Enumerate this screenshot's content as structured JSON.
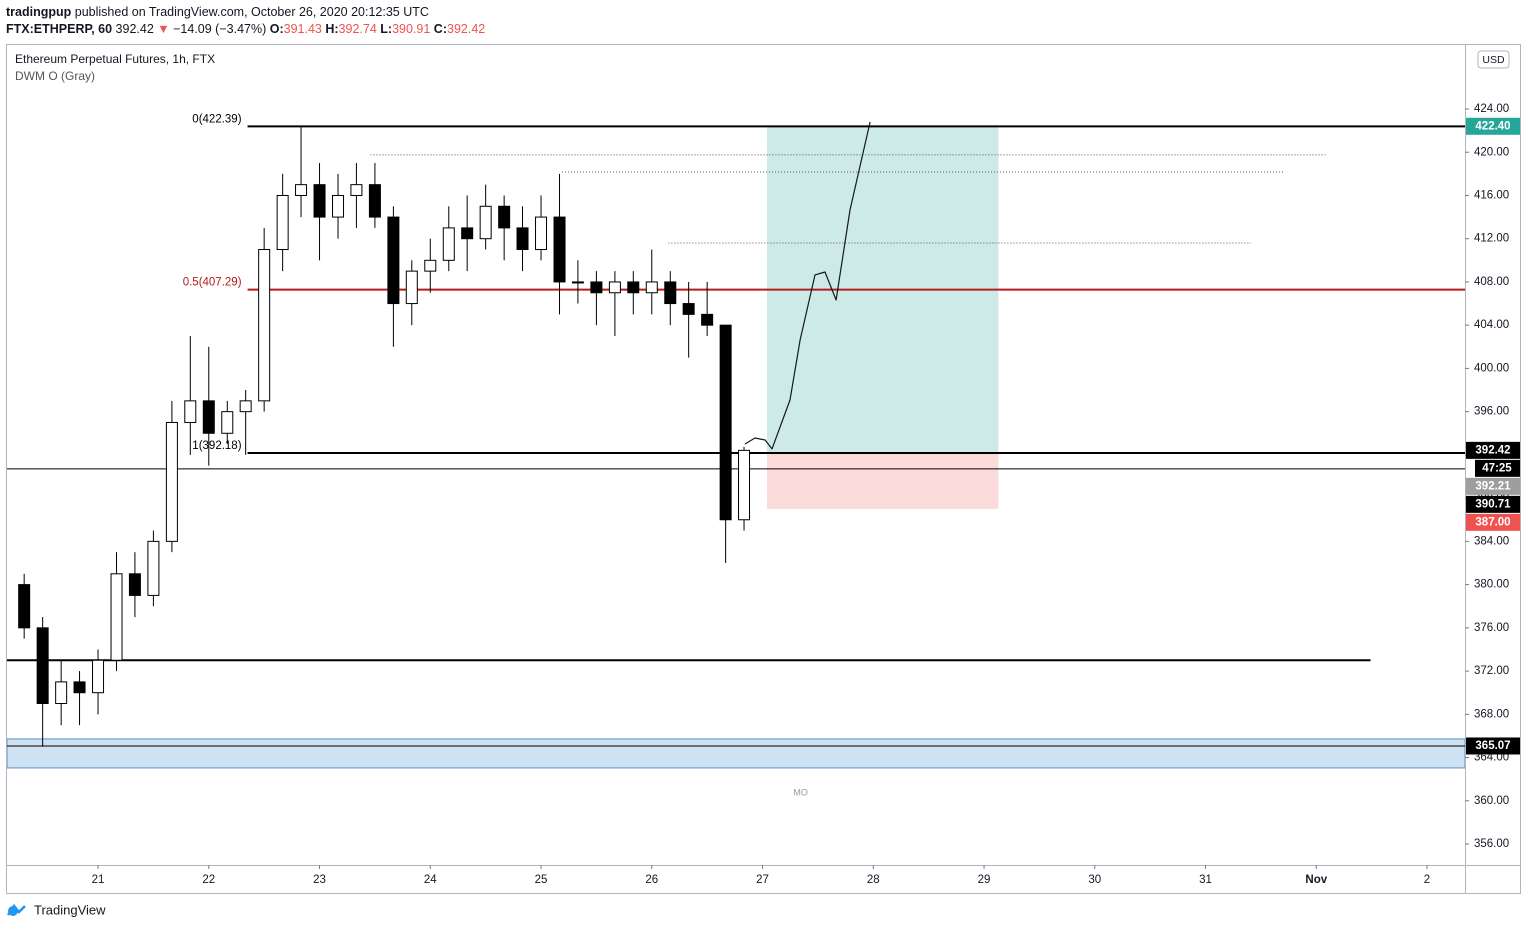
{
  "header": {
    "author": "tradingpup",
    "published": "published on TradingView.com, October 26, 2020 20:12:35 UTC",
    "symbol": "FTX:ETHPERP, 60",
    "last": 392.42,
    "change": "−14.09 (−3.47%)",
    "ohlc": [
      {
        "label": "O:",
        "value": 391.43
      },
      {
        "label": "H:",
        "value": 392.74
      },
      {
        "label": "L:",
        "value": 390.91
      },
      {
        "label": "C:",
        "value": 392.42
      }
    ]
  },
  "chart_data": {
    "type": "candlestick",
    "title": "Ethereum Perpetual Futures, 1h, FTX",
    "subtitle": "DWM O (Gray)",
    "currency": "USD",
    "watermark": "MO",
    "brand": "TradingView",
    "x": [
      20.333,
      20.5,
      20.667,
      20.833,
      21.0,
      21.167,
      21.333,
      21.5,
      21.667,
      21.833,
      22.0,
      22.167,
      22.333,
      22.5,
      22.667,
      22.833,
      23.0,
      23.167,
      23.333,
      23.5,
      23.667,
      23.833,
      24.0,
      24.167,
      24.333,
      24.5,
      24.667,
      24.833,
      25.0,
      25.167,
      25.333,
      25.5,
      25.667,
      25.833,
      26.0,
      26.167,
      26.333,
      26.5,
      26.667,
      26.833
    ],
    "open": [
      380,
      376,
      369,
      371,
      370,
      373,
      381,
      379,
      384,
      395,
      397,
      394,
      396,
      397,
      411,
      416,
      417,
      414,
      416,
      417,
      414,
      406,
      409,
      410,
      413,
      412,
      415,
      413,
      411,
      414,
      408,
      408,
      407,
      408,
      407,
      408,
      406,
      405,
      404,
      386
    ],
    "high": [
      381,
      377,
      373,
      372,
      374,
      383,
      383,
      385,
      397,
      403,
      402,
      397,
      398,
      413,
      418,
      422.4,
      419,
      418,
      419,
      419,
      415,
      410,
      412,
      415,
      416,
      417,
      416,
      415,
      416,
      418,
      410,
      409,
      409,
      409,
      411,
      409,
      408,
      408,
      404,
      392.74
    ],
    "low": [
      375,
      365,
      367,
      367,
      368,
      372,
      377,
      378,
      383,
      392,
      391,
      393,
      392,
      396,
      409,
      414,
      410,
      412,
      413,
      413,
      402,
      404,
      407,
      409,
      409,
      411,
      410,
      409,
      410,
      405,
      406,
      404,
      403,
      405,
      405,
      404,
      401,
      403,
      382,
      385
    ],
    "close": [
      376,
      369,
      371,
      370,
      373,
      381,
      379,
      384,
      395,
      397,
      394,
      396,
      397,
      411,
      416,
      417,
      414,
      416,
      417,
      414,
      406,
      409,
      410,
      413,
      412,
      415,
      413,
      411,
      414,
      408,
      408,
      407,
      408,
      407,
      408,
      406,
      405,
      404,
      386,
      392.42
    ],
    "up_color": "#ffffff",
    "down_color": "#000000",
    "xlim": [
      20.178,
      33.343
    ],
    "ylim": [
      354.06,
      429.92
    ],
    "xticks": [
      21,
      22,
      23,
      24,
      25,
      26,
      27,
      28,
      29,
      30,
      31,
      {
        "value": 32,
        "label": "Nov"
      },
      {
        "value": 33,
        "label": "2"
      }
    ],
    "yticks": [
      {
        "value": 356,
        "label": "356.00"
      },
      {
        "value": 360,
        "label": "360.00"
      },
      {
        "value": 364,
        "label": "364.00"
      },
      {
        "value": 368,
        "label": "368.00"
      },
      {
        "value": 372,
        "label": "372.00"
      },
      {
        "value": 376,
        "label": "376.00"
      },
      {
        "value": 380,
        "label": "380.00"
      },
      {
        "value": 384,
        "label": "384.00"
      },
      {
        "value": 388,
        "label": "388.00"
      },
      {
        "value": 392,
        "label": "392.00"
      },
      {
        "value": 396,
        "label": "396.00"
      },
      {
        "value": 400,
        "label": "400.00"
      },
      {
        "value": 404,
        "label": "404.00"
      },
      {
        "value": 408,
        "label": "408.00"
      },
      {
        "value": 412,
        "label": "412.00"
      },
      {
        "value": 416,
        "label": "416.00"
      },
      {
        "value": 420,
        "label": "420.00"
      },
      {
        "value": 424,
        "label": "424.00"
      }
    ],
    "fib_levels": [
      {
        "value": 422.39,
        "label": "0(422.39)",
        "color": "#000000"
      },
      {
        "value": 407.29,
        "label": "0.5(407.29)",
        "color": "#b71c1c"
      },
      {
        "value": 392.18,
        "label": "1(392.18)",
        "color": "#000000"
      }
    ],
    "fib_start": 22.35,
    "hlines": [
      {
        "value": 390.71,
        "color": "#000000"
      },
      {
        "value": 373,
        "color": "#000000",
        "end": 32.49
      },
      {
        "value": 365.07,
        "color": "#000000"
      }
    ],
    "dotted_lines": [
      {
        "value": 419.75,
        "start": 23.46,
        "end": 32.09
      },
      {
        "value": 418.17,
        "start": 25.19,
        "end": 31.71
      },
      {
        "value": 411.6,
        "start": 26.15,
        "end": 31.41
      }
    ],
    "zone": {
      "low": 363.04,
      "high": 365.72,
      "color": "#cfe2f3"
    },
    "position": {
      "entry": 392.21,
      "target": 422.4,
      "stop": 387.0,
      "start": 27.04,
      "end": 29.13
    },
    "projection": {
      "x": [
        26.842,
        26.932,
        27.023,
        27.086,
        27.248,
        27.339,
        27.474,
        27.564,
        27.664,
        27.79,
        27.971
      ],
      "y": [
        393.01,
        393.56,
        393.38,
        392.55,
        397.08,
        402.63,
        408.65,
        408.92,
        406.33,
        414.66,
        422.8
      ]
    },
    "price_labels": [
      {
        "value": 422.4,
        "label": "422.40",
        "color": "#26a69a"
      },
      {
        "value": 392.42,
        "label": "392.42",
        "color": "#000000"
      },
      {
        "value": 392.21,
        "label": "392.21",
        "color": "#9e9e9e"
      },
      {
        "value": 390.71,
        "label": "390.71",
        "color": "#000000"
      },
      {
        "value": 387.0,
        "label": "387.00",
        "color": "#ef5350"
      },
      {
        "value": 365.07,
        "label": "365.07",
        "color": "#000000"
      }
    ],
    "countdown": "47:25"
  }
}
